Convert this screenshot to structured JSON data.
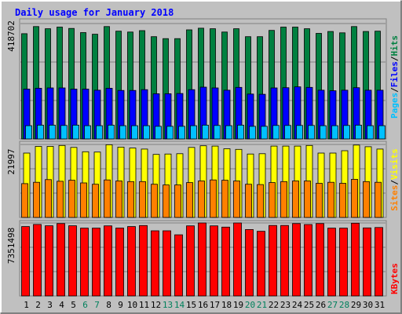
{
  "title": "Daily usage for January 2018",
  "colors": {
    "background": "#c0c0c0",
    "frame_light": "#ffffff",
    "frame_dark": "#808080",
    "title": "#0000ff",
    "hits": "#008040",
    "files": "#0000ff",
    "pages": "#00c0ff",
    "visits": "#ffff00",
    "sites": "#ff8000",
    "kbytes": "#ff0000",
    "weekday_label": "#000000",
    "weekend_label": "#00805c"
  },
  "chart_data": [
    {
      "type": "bar",
      "panel": "hits-files-pages",
      "categories": [
        "1",
        "2",
        "3",
        "4",
        "5",
        "6",
        "7",
        "8",
        "9",
        "10",
        "11",
        "12",
        "13",
        "14",
        "15",
        "16",
        "17",
        "18",
        "19",
        "20",
        "21",
        "22",
        "23",
        "24",
        "25",
        "26",
        "27",
        "28",
        "29",
        "30",
        "31"
      ],
      "weekend_days": [
        "6",
        "7",
        "13",
        "14",
        "20",
        "21",
        "27",
        "28"
      ],
      "y_tick_label": "418702",
      "ylim": [
        0,
        418702
      ],
      "grid": true,
      "series": [
        {
          "name": "Hits",
          "color": "#008040",
          "values": [
            382000,
            408000,
            400000,
            406000,
            401000,
            386000,
            380000,
            408000,
            391000,
            388000,
            393000,
            371000,
            364000,
            364000,
            396000,
            402000,
            400000,
            388000,
            400000,
            371000,
            371000,
            394000,
            406000,
            406000,
            400000,
            383000,
            390000,
            385000,
            408000,
            390000,
            391000
          ]
        },
        {
          "name": "Files",
          "color": "#0000ff",
          "values": [
            181000,
            184000,
            185000,
            185000,
            181000,
            181000,
            177000,
            184000,
            176000,
            176000,
            179000,
            164000,
            164000,
            165000,
            179000,
            188000,
            185000,
            177000,
            187000,
            163000,
            162000,
            185000,
            186000,
            189000,
            187000,
            177000,
            175000,
            177000,
            186000,
            177000,
            177000
          ]
        },
        {
          "name": "Pages",
          "color": "#00c0ff",
          "values": [
            48000,
            50000,
            50000,
            49000,
            50000,
            48000,
            48000,
            50000,
            48000,
            48000,
            48000,
            46000,
            46000,
            46000,
            48000,
            50000,
            49000,
            48000,
            50000,
            46000,
            46000,
            49000,
            49000,
            49000,
            49000,
            48000,
            48000,
            49000,
            50000,
            48000,
            48000
          ]
        }
      ]
    },
    {
      "type": "bar",
      "panel": "visits-sites",
      "categories": [
        "1",
        "2",
        "3",
        "4",
        "5",
        "6",
        "7",
        "8",
        "9",
        "10",
        "11",
        "12",
        "13",
        "14",
        "15",
        "16",
        "17",
        "18",
        "19",
        "20",
        "21",
        "22",
        "23",
        "24",
        "25",
        "26",
        "27",
        "28",
        "29",
        "30",
        "31"
      ],
      "y_tick_label": "21997",
      "ylim": [
        0,
        21997
      ],
      "grid": true,
      "series": [
        {
          "name": "Visits",
          "color": "#ffff00",
          "values": [
            19400,
            21400,
            21400,
            21700,
            21100,
            19800,
            19700,
            21900,
            21200,
            20900,
            20600,
            19000,
            19100,
            19200,
            21100,
            21600,
            21500,
            20700,
            20500,
            19100,
            19200,
            21500,
            21500,
            21500,
            21700,
            19400,
            19400,
            20100,
            21800,
            21300,
            20600
          ]
        },
        {
          "name": "Sites",
          "color": "#ff8000",
          "values": [
            10200,
            10600,
            11400,
            10900,
            11200,
            10400,
            10000,
            11300,
            11000,
            10800,
            10800,
            10000,
            9800,
            9800,
            10500,
            11000,
            11300,
            11200,
            11000,
            10000,
            9900,
            10500,
            10800,
            11000,
            11000,
            10300,
            10600,
            10300,
            11500,
            10800,
            10600
          ]
        }
      ]
    },
    {
      "type": "bar",
      "panel": "kbytes",
      "categories": [
        "1",
        "2",
        "3",
        "4",
        "5",
        "6",
        "7",
        "8",
        "9",
        "10",
        "11",
        "12",
        "13",
        "14",
        "15",
        "16",
        "17",
        "18",
        "19",
        "20",
        "21",
        "22",
        "23",
        "24",
        "25",
        "26",
        "27",
        "28",
        "29",
        "30",
        "31"
      ],
      "y_tick_label": "7351498",
      "ylim": [
        0,
        7351498
      ],
      "grid": true,
      "series": [
        {
          "name": "KBytes",
          "color": "#ff0000",
          "values": [
            6990000,
            7200000,
            7070000,
            7290000,
            7070000,
            6830000,
            6830000,
            7060000,
            6840000,
            6990000,
            7090000,
            6560000,
            6560000,
            6160000,
            7060000,
            7350000,
            7060000,
            6930000,
            7350000,
            6690000,
            6510000,
            7100000,
            7100000,
            7290000,
            7190000,
            7290000,
            6830000,
            6830000,
            7330000,
            6850000,
            6890000
          ]
        }
      ]
    }
  ],
  "right_labels": {
    "top": [
      {
        "text": "Pages",
        "color": "#00c0ff"
      },
      {
        "text": "/",
        "color": "#000000"
      },
      {
        "text": "Files",
        "color": "#0000ff"
      },
      {
        "text": "/",
        "color": "#000000"
      },
      {
        "text": "Hits",
        "color": "#008040"
      }
    ],
    "middle": [
      {
        "text": "Sites",
        "color": "#ff8000"
      },
      {
        "text": "/",
        "color": "#000000"
      },
      {
        "text": "Visits",
        "color": "#ffff00"
      }
    ],
    "bottom": [
      {
        "text": "KBytes",
        "color": "#ff0000"
      }
    ]
  }
}
